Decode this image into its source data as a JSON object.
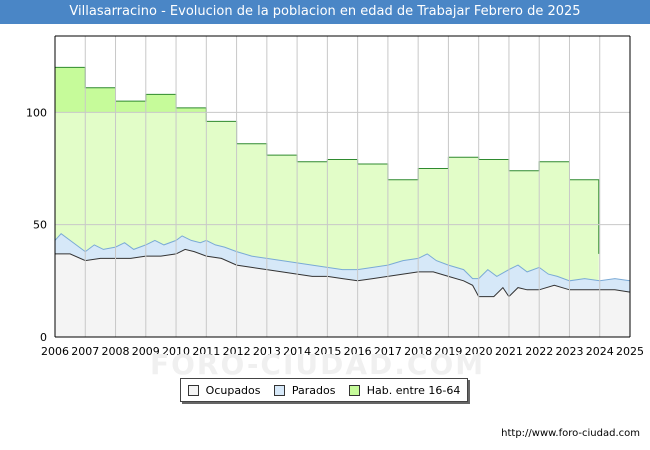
{
  "title": "Villasarracino - Evolucion de la poblacion en edad de Trabajar Febrero de 2025",
  "source": "http://www.foro-ciudad.com",
  "watermark": "FORO-CIUDAD.COM",
  "colors": {
    "title_bg": "#4a86c6",
    "hab": "#e2fdc8",
    "hab_line": "#2f8a2f",
    "hab_dark": "#c6fb9a",
    "parados": "#d6e8f8",
    "parados_line": "#7aaad6",
    "ocupados": "#f4f4f4",
    "ocupados_line": "#333333"
  },
  "legend": [
    {
      "label": "Ocupados",
      "color": "#f4f4f4"
    },
    {
      "label": "Parados",
      "color": "#d6e8f8"
    },
    {
      "label": "Hab. entre 16-64",
      "color": "#c6fb9a"
    }
  ],
  "chart_data": {
    "type": "area",
    "title": "Villasarracino - Evolucion de la poblacion en edad de Trabajar Febrero de 2025",
    "x_ticks": [
      "2006",
      "2007",
      "2008",
      "2009",
      "2010",
      "2011",
      "2012",
      "2013",
      "2014",
      "2015",
      "2016",
      "2017",
      "2018",
      "2019",
      "2020",
      "2021",
      "2022",
      "2023",
      "2024",
      "2025"
    ],
    "y_ticks": [
      0,
      50,
      100
    ],
    "xlim": [
      2006,
      2025
    ],
    "ylim": [
      0,
      134
    ],
    "grid": true,
    "legend_position": "bottom",
    "series": [
      {
        "name": "Hab. entre 16-64",
        "steps": [
          [
            2006,
            120
          ],
          [
            2007,
            111
          ],
          [
            2008,
            105
          ],
          [
            2009,
            108
          ],
          [
            2010,
            102
          ],
          [
            2011,
            96
          ],
          [
            2012,
            86
          ],
          [
            2013,
            81
          ],
          [
            2014,
            78
          ],
          [
            2015,
            79
          ],
          [
            2016,
            77
          ],
          [
            2017,
            70
          ],
          [
            2018,
            75
          ],
          [
            2019,
            80
          ],
          [
            2020,
            79
          ],
          [
            2021,
            74
          ],
          [
            2022,
            78
          ],
          [
            2023,
            70
          ]
        ],
        "end": [
          2023.97,
          37
        ]
      },
      {
        "name": "Parados",
        "points": [
          [
            2006,
            43
          ],
          [
            2006.2,
            46
          ],
          [
            2006.5,
            43
          ],
          [
            2006.8,
            40
          ],
          [
            2007,
            38
          ],
          [
            2007.3,
            41
          ],
          [
            2007.6,
            39
          ],
          [
            2008,
            40
          ],
          [
            2008.3,
            42
          ],
          [
            2008.6,
            39
          ],
          [
            2009,
            41
          ],
          [
            2009.3,
            43
          ],
          [
            2009.6,
            41
          ],
          [
            2010,
            43
          ],
          [
            2010.2,
            45
          ],
          [
            2010.5,
            43
          ],
          [
            2010.8,
            42
          ],
          [
            2011,
            43
          ],
          [
            2011.3,
            41
          ],
          [
            2011.6,
            40
          ],
          [
            2012,
            38
          ],
          [
            2012.5,
            36
          ],
          [
            2013,
            35
          ],
          [
            2013.5,
            34
          ],
          [
            2014,
            33
          ],
          [
            2014.5,
            32
          ],
          [
            2015,
            31
          ],
          [
            2015.5,
            30
          ],
          [
            2016,
            30
          ],
          [
            2016.5,
            31
          ],
          [
            2017,
            32
          ],
          [
            2017.5,
            34
          ],
          [
            2018,
            35
          ],
          [
            2018.3,
            37
          ],
          [
            2018.6,
            34
          ],
          [
            2019,
            32
          ],
          [
            2019.5,
            30
          ],
          [
            2019.8,
            26
          ],
          [
            2020,
            26
          ],
          [
            2020.3,
            30
          ],
          [
            2020.6,
            27
          ],
          [
            2021,
            30
          ],
          [
            2021.3,
            32
          ],
          [
            2021.6,
            29
          ],
          [
            2022,
            31
          ],
          [
            2022.3,
            28
          ],
          [
            2022.6,
            27
          ],
          [
            2023,
            25
          ],
          [
            2023.5,
            26
          ],
          [
            2024,
            25
          ],
          [
            2024.5,
            26
          ],
          [
            2025,
            25
          ]
        ]
      },
      {
        "name": "Ocupados",
        "points": [
          [
            2006,
            37
          ],
          [
            2006.5,
            37
          ],
          [
            2007,
            34
          ],
          [
            2007.5,
            35
          ],
          [
            2008,
            35
          ],
          [
            2008.5,
            35
          ],
          [
            2009,
            36
          ],
          [
            2009.5,
            36
          ],
          [
            2010,
            37
          ],
          [
            2010.3,
            39
          ],
          [
            2010.6,
            38
          ],
          [
            2011,
            36
          ],
          [
            2011.5,
            35
          ],
          [
            2012,
            32
          ],
          [
            2012.5,
            31
          ],
          [
            2013,
            30
          ],
          [
            2013.5,
            29
          ],
          [
            2014,
            28
          ],
          [
            2014.5,
            27
          ],
          [
            2015,
            27
          ],
          [
            2015.5,
            26
          ],
          [
            2016,
            25
          ],
          [
            2016.5,
            26
          ],
          [
            2017,
            27
          ],
          [
            2017.5,
            28
          ],
          [
            2018,
            29
          ],
          [
            2018.5,
            29
          ],
          [
            2019,
            27
          ],
          [
            2019.5,
            25
          ],
          [
            2019.8,
            23
          ],
          [
            2020,
            18
          ],
          [
            2020.5,
            18
          ],
          [
            2020.8,
            22
          ],
          [
            2021,
            18
          ],
          [
            2021.3,
            22
          ],
          [
            2021.6,
            21
          ],
          [
            2022,
            21
          ],
          [
            2022.5,
            23
          ],
          [
            2023,
            21
          ],
          [
            2023.5,
            21
          ],
          [
            2024,
            21
          ],
          [
            2024.5,
            21
          ],
          [
            2025,
            20
          ]
        ]
      }
    ]
  }
}
